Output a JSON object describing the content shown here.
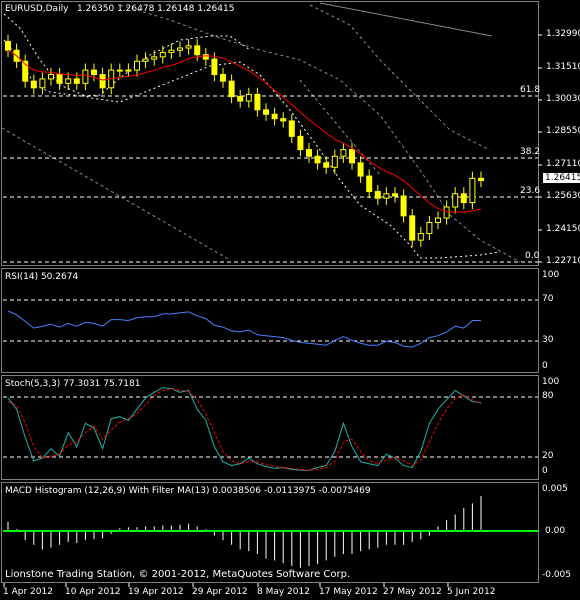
{
  "header": {
    "symbol": "EURUSD,Daily",
    "ohlc": "1.26350 1.26478 1.26148 1.26415"
  },
  "price_axis": [
    "1.32990",
    "1.31510",
    "1.30030",
    "1.28550",
    "1.27110",
    "1.25630",
    "1.24150",
    "1.22710"
  ],
  "current_price": "1.26415",
  "fib_levels": [
    "61.8",
    "38.2",
    "23.6",
    "0.0"
  ],
  "rsi": {
    "title": "RSI(14) 50.2674",
    "ticks": [
      "100",
      "70",
      "30",
      "0"
    ]
  },
  "stoch": {
    "title": "Stoch(5,3,3) 77.3031 75.7181",
    "ticks": [
      "100",
      "80",
      "20",
      "0"
    ]
  },
  "macd": {
    "title": "MACD Histogram (12,26,9) With Filter MA(13) 0.0038506 -0.0113975 -0.0075469",
    "ticks": [
      "0.005",
      "0.00",
      "-0.005"
    ]
  },
  "copyright": "Lionstone Trading Station, © 2001-2012, MetaQuotes Software Corp.",
  "date_axis": [
    "1 Apr 2012",
    "10 Apr 2012",
    "19 Apr 2012",
    "29 Apr 2012",
    "8 May 2012",
    "17 May 2012",
    "27 May 2012",
    "5 Jun 2012"
  ],
  "colors": {
    "background": "#000000",
    "candle": "#ffff00",
    "ma": "#ff0000",
    "rsi": "#4a7fff",
    "stoch_main": "#20b2aa",
    "stoch_signal": "#ff0000",
    "macd_zero": "#00ff00",
    "grid": "#808080"
  },
  "chart_data": [
    {
      "type": "candlestick",
      "title": "EURUSD,Daily",
      "ylim": [
        1.2271,
        1.3299
      ],
      "close": [
        1.323,
        1.318,
        1.309,
        1.306,
        1.31,
        1.312,
        1.308,
        1.31,
        1.308,
        1.314,
        1.312,
        1.306,
        1.314,
        1.314,
        1.314,
        1.318,
        1.319,
        1.32,
        1.322,
        1.323,
        1.324,
        1.325,
        1.321,
        1.319,
        1.312,
        1.309,
        1.302,
        1.3,
        1.303,
        1.296,
        1.294,
        1.292,
        1.291,
        1.284,
        1.278,
        1.275,
        1.272,
        1.27,
        1.275,
        1.278,
        1.272,
        1.266,
        1.259,
        1.256,
        1.258,
        1.257,
        1.248,
        1.237,
        1.24,
        1.245,
        1.247,
        1.252,
        1.258,
        1.254,
        1.265,
        1.264
      ]
    },
    {
      "type": "line",
      "title": "RSI(14) 50.2674",
      "ylim": [
        0,
        100
      ],
      "values": [
        60,
        56,
        49,
        42,
        44,
        46,
        43,
        47,
        44,
        48,
        47,
        44,
        51,
        51,
        50,
        53,
        54,
        54,
        57,
        57,
        58,
        59,
        55,
        52,
        45,
        43,
        39,
        38,
        40,
        35,
        34,
        33,
        32,
        29,
        27,
        26,
        25,
        24,
        29,
        33,
        29,
        26,
        24,
        24,
        28,
        27,
        23,
        22,
        26,
        32,
        34,
        38,
        44,
        42,
        50,
        50
      ]
    },
    {
      "type": "line",
      "title": "Stoch(5,3,3) 77.3031 75.7181",
      "ylim": [
        0,
        100
      ],
      "series": [
        {
          "values": [
            82,
            70,
            40,
            15,
            18,
            28,
            20,
            45,
            30,
            55,
            50,
            28,
            60,
            62,
            58,
            70,
            82,
            88,
            93,
            92,
            88,
            90,
            70,
            58,
            30,
            14,
            10,
            12,
            18,
            12,
            9,
            7,
            8,
            6,
            5,
            5,
            8,
            10,
            25,
            55,
            30,
            14,
            12,
            10,
            22,
            18,
            10,
            8,
            25,
            55,
            70,
            80,
            90,
            84,
            78,
            77
          ]
        },
        {
          "values": [
            78,
            74,
            55,
            30,
            18,
            20,
            22,
            32,
            35,
            45,
            52,
            38,
            48,
            56,
            60,
            65,
            75,
            85,
            90,
            92,
            90,
            89,
            80,
            65,
            45,
            25,
            15,
            12,
            14,
            14,
            11,
            9,
            8,
            7,
            6,
            5,
            6,
            8,
            15,
            35,
            38,
            25,
            15,
            12,
            16,
            19,
            15,
            10,
            16,
            35,
            55,
            70,
            82,
            85,
            80,
            76
          ]
        }
      ]
    },
    {
      "type": "bar",
      "title": "MACD Histogram (12,26,9) With Filter MA(13)",
      "ylim": [
        -0.006,
        0.005
      ],
      "values": [
        0.001,
        0.0002,
        -0.001,
        -0.0015,
        -0.002,
        -0.0018,
        -0.0015,
        -0.0012,
        -0.0013,
        -0.001,
        -0.0009,
        -0.0008,
        -0.0003,
        0.0003,
        0.0004,
        0.0004,
        0.0005,
        0.0005,
        0.0006,
        0.0006,
        0.0007,
        0.0008,
        0.0005,
        0.0002,
        -0.0005,
        -0.001,
        -0.0015,
        -0.002,
        -0.0022,
        -0.0025,
        -0.003,
        -0.0032,
        -0.0035,
        -0.0038,
        -0.004,
        -0.0038,
        -0.0036,
        -0.0032,
        -0.0028,
        -0.0025,
        -0.0025,
        -0.0022,
        -0.002,
        -0.0018,
        -0.0015,
        -0.0015,
        -0.0015,
        -0.0012,
        -0.0009,
        -0.0005,
        0.0005,
        0.0012,
        0.0018,
        0.0025,
        0.003,
        0.0038
      ]
    }
  ]
}
